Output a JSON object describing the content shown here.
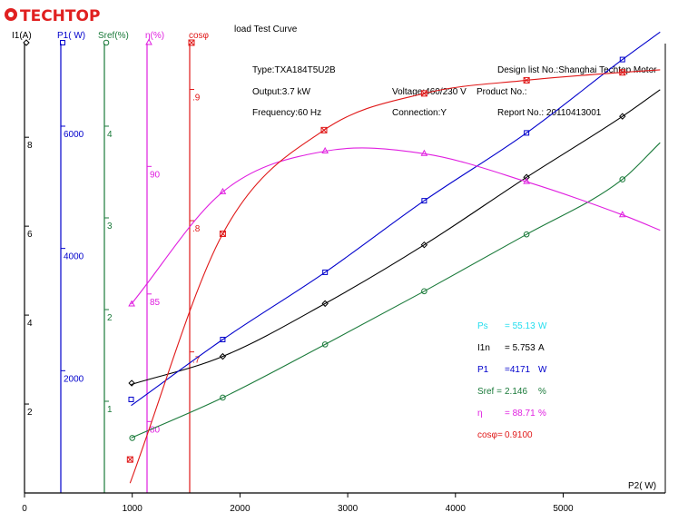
{
  "logo": {
    "text": "TECHTOP",
    "color": "#e02020"
  },
  "chart_data": {
    "type": "line",
    "title": "load Test Curve",
    "xlabel": "P2( W)",
    "x_ticks": [
      0,
      1000,
      2000,
      3000,
      4000,
      5000
    ],
    "xlim": [
      0,
      5900
    ],
    "grid": false,
    "info": {
      "type_line": "Type:TXA184T5U2B",
      "output_line": "Output:3.7  kW",
      "frequency_line": "Frequency:60  Hz",
      "voltage_line": "Voltage:460/230  V",
      "connection_line": "Connection:Y",
      "design_line": "Design  list  No.:Shanghai  Techtop  Motor",
      "product_line": "Product No.:",
      "report_line": "Report  No.:  20110413001"
    },
    "axes": [
      {
        "id": "I1",
        "label": "I1(A)",
        "color": "#000000",
        "ticks": [
          "2",
          "4",
          "6",
          "8"
        ],
        "tick_values": [
          2,
          4,
          6,
          8
        ],
        "range": [
          0,
          10.27
        ],
        "marker": "diamond"
      },
      {
        "id": "P1",
        "label": "P1( W)",
        "color": "#0000cc",
        "ticks": [
          "2000",
          "4000",
          "6000"
        ],
        "tick_values": [
          2000,
          4000,
          6000
        ],
        "range": [
          0,
          7470
        ],
        "marker": "square"
      },
      {
        "id": "Sref",
        "label": "Sref(%)",
        "color": "#1a7a3a",
        "ticks": [
          "1",
          "2",
          "3",
          "4"
        ],
        "tick_values": [
          1,
          2,
          3,
          4
        ],
        "range": [
          0,
          4.98
        ],
        "marker": "circle"
      },
      {
        "id": "eta",
        "label": "η(%)",
        "color": "#e020e0",
        "ticks": [
          "80",
          "85",
          "90"
        ],
        "tick_values": [
          80,
          85,
          90
        ],
        "range": [
          77.2,
          95.1
        ],
        "marker": "triangle"
      },
      {
        "id": "cos",
        "label": "cosφ",
        "color": "#e01818",
        "ticks": [
          ".7",
          ".8",
          ".9"
        ],
        "tick_values": [
          0.7,
          0.8,
          0.9
        ],
        "range": [
          0.5925,
          0.9405
        ],
        "marker": "x"
      }
    ],
    "series": [
      {
        "axis": "I1",
        "color": "#000000",
        "x": [
          995,
          1840,
          2790,
          3710,
          4660,
          5550
        ],
        "y": [
          2.47,
          3.07,
          4.26,
          5.58,
          7.1,
          8.47
        ],
        "curve_x": [
          990,
          5900
        ],
        "curve_y": [
          2.44,
          9.07
        ]
      },
      {
        "axis": "P1",
        "color": "#0000cc",
        "x": [
          990,
          1840,
          2790,
          3710,
          4660,
          5550
        ],
        "y": [
          1530,
          2510,
          3610,
          4780,
          5890,
          7090
        ],
        "curve_x": [
          990,
          5900
        ],
        "curve_y": [
          1430,
          7540
        ]
      },
      {
        "axis": "Sref",
        "color": "#1a7a3a",
        "x": [
          1000,
          1840,
          2790,
          3710,
          4660,
          5550
        ],
        "y": [
          0.6,
          1.04,
          1.62,
          2.2,
          2.82,
          3.42
        ],
        "curve_x": [
          990,
          5900
        ],
        "curve_y": [
          0.6,
          3.82
        ]
      },
      {
        "axis": "eta",
        "color": "#e020e0",
        "x": [
          995,
          1840,
          2790,
          3710,
          4660,
          5550
        ],
        "y": [
          84.6,
          89.0,
          90.6,
          90.5,
          89.4,
          88.1
        ],
        "curve_x": [
          990,
          5900
        ],
        "curve_y": [
          84.6,
          87.5
        ]
      },
      {
        "axis": "cos",
        "color": "#e01818",
        "x": [
          980,
          1840,
          2780,
          3710,
          4660,
          5550
        ],
        "y": [
          0.618,
          0.79,
          0.869,
          0.897,
          0.907,
          0.913
        ],
        "curve_x": [
          980,
          5900
        ],
        "curve_y": [
          0.6,
          0.915
        ]
      }
    ],
    "results": [
      {
        "label": "Ps",
        "value": "= 55.13",
        "unit": "W",
        "color": "#22ddee"
      },
      {
        "label": "I1n",
        "value": "= 5.753",
        "unit": "A",
        "color": "#000000"
      },
      {
        "label": "P1",
        "value": "=4171",
        "unit": "W",
        "color": "#0000cc"
      },
      {
        "label": "Sref =",
        "value": "2.146",
        "unit": "%",
        "color": "#1a7a3a"
      },
      {
        "label": "η",
        "value": "= 88.71",
        "unit": "%",
        "color": "#e020e0"
      },
      {
        "label": "cosφ=",
        "value": "0.9100",
        "unit": "",
        "color": "#e01818"
      }
    ]
  }
}
